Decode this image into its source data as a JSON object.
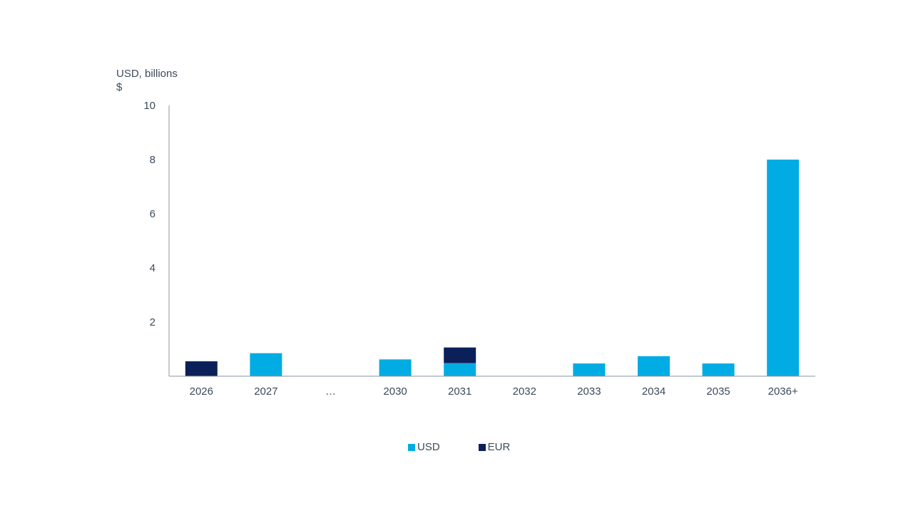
{
  "chart_data": {
    "type": "bar",
    "stacked": true,
    "unit_label_line1": "USD, billions",
    "unit_label_line2": "$",
    "categories": [
      "2026",
      "2027",
      "...",
      "2030",
      "2031",
      "2032",
      "2033",
      "2034",
      "2035",
      "2036+"
    ],
    "series": [
      {
        "name": "USD",
        "color": "#00ace3",
        "values": [
          0,
          0.85,
          0,
          0.62,
          0.48,
          0,
          0.47,
          0.74,
          0.47,
          8.0
        ]
      },
      {
        "name": "EUR",
        "color": "#0b2059",
        "values": [
          0.55,
          0,
          0,
          0,
          0.58,
          0,
          0,
          0,
          0,
          0
        ]
      }
    ],
    "yticks": [
      2,
      4,
      6,
      8,
      10
    ],
    "ylim": [
      0,
      10
    ],
    "grid": false,
    "legend_position": "bottom"
  }
}
